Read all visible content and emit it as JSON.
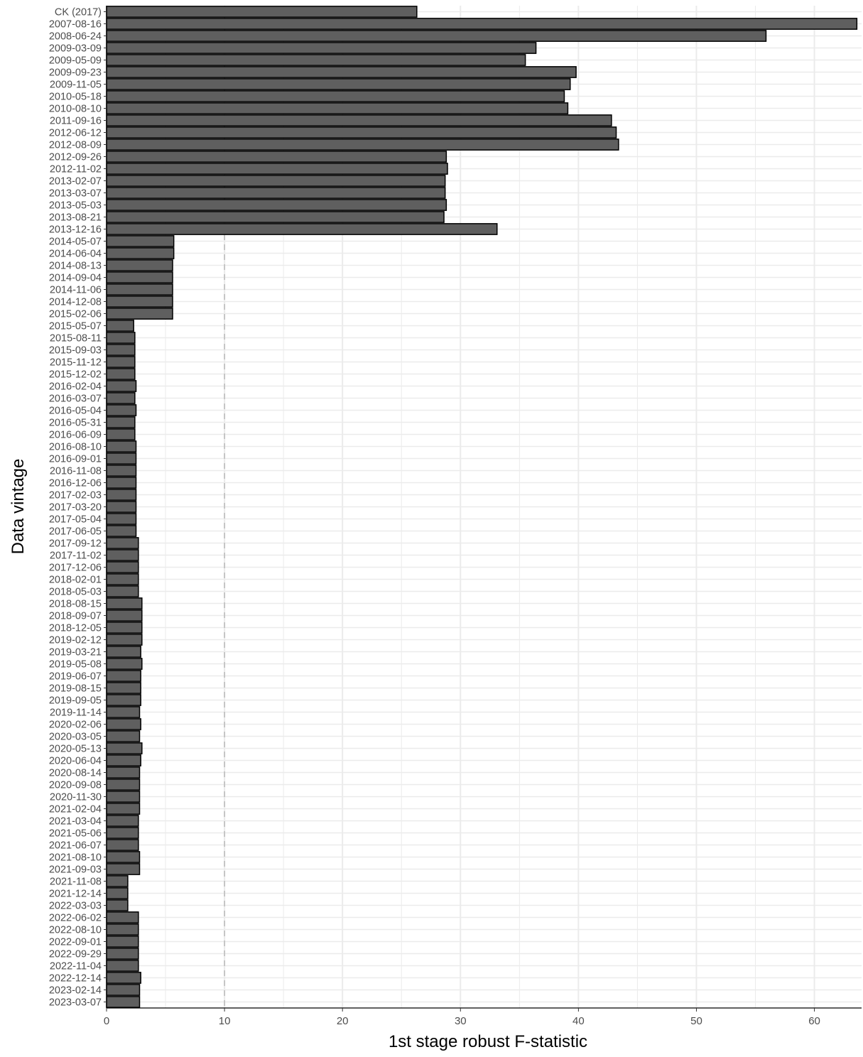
{
  "chart_data": {
    "type": "bar",
    "orientation": "horizontal",
    "xlabel": "1st stage robust F-statistic",
    "ylabel": "Data vintage",
    "xlim": [
      0,
      64
    ],
    "x_ticks": [
      0,
      10,
      20,
      30,
      40,
      50,
      60
    ],
    "reference_line": 10,
    "grid": true,
    "colors": {
      "bar_fill": "#5f5f5f",
      "bar_stroke": "#000000",
      "grid": "#ebebeb",
      "ref_line": "#bdbdbd"
    },
    "categories": [
      "CK (2017)",
      "2007-08-16",
      "2008-06-24",
      "2009-03-09",
      "2009-05-09",
      "2009-09-23",
      "2009-11-05",
      "2010-05-18",
      "2010-08-10",
      "2011-09-16",
      "2012-06-12",
      "2012-08-09",
      "2012-09-26",
      "2012-11-02",
      "2013-02-07",
      "2013-03-07",
      "2013-05-03",
      "2013-08-21",
      "2013-12-16",
      "2014-05-07",
      "2014-06-04",
      "2014-08-13",
      "2014-09-04",
      "2014-11-06",
      "2014-12-08",
      "2015-02-06",
      "2015-05-07",
      "2015-08-11",
      "2015-09-03",
      "2015-11-12",
      "2015-12-02",
      "2016-02-04",
      "2016-03-07",
      "2016-05-04",
      "2016-05-31",
      "2016-06-09",
      "2016-08-10",
      "2016-09-01",
      "2016-11-08",
      "2016-12-06",
      "2017-02-03",
      "2017-03-20",
      "2017-05-04",
      "2017-06-05",
      "2017-09-12",
      "2017-11-02",
      "2017-12-06",
      "2018-02-01",
      "2018-05-03",
      "2018-08-15",
      "2018-09-07",
      "2018-12-05",
      "2019-02-12",
      "2019-03-21",
      "2019-05-08",
      "2019-06-07",
      "2019-08-15",
      "2019-09-05",
      "2019-11-14",
      "2020-02-06",
      "2020-03-05",
      "2020-05-13",
      "2020-06-04",
      "2020-08-14",
      "2020-09-08",
      "2020-11-30",
      "2021-02-04",
      "2021-03-04",
      "2021-05-06",
      "2021-06-07",
      "2021-08-10",
      "2021-09-03",
      "2021-11-08",
      "2021-12-14",
      "2022-03-03",
      "2022-06-02",
      "2022-08-10",
      "2022-09-01",
      "2022-09-29",
      "2022-11-04",
      "2022-12-14",
      "2023-02-14",
      "2023-03-07"
    ],
    "values": [
      26.3,
      63.6,
      55.9,
      36.4,
      35.5,
      39.8,
      39.3,
      38.8,
      39.1,
      42.8,
      43.2,
      43.4,
      28.8,
      28.9,
      28.7,
      28.7,
      28.8,
      28.6,
      33.1,
      5.7,
      5.7,
      5.6,
      5.6,
      5.6,
      5.6,
      5.6,
      2.3,
      2.4,
      2.4,
      2.4,
      2.4,
      2.5,
      2.4,
      2.5,
      2.4,
      2.4,
      2.5,
      2.5,
      2.5,
      2.5,
      2.5,
      2.5,
      2.5,
      2.5,
      2.7,
      2.7,
      2.7,
      2.7,
      2.7,
      3.0,
      3.0,
      3.0,
      3.0,
      2.9,
      3.0,
      2.9,
      2.9,
      2.9,
      2.8,
      2.9,
      2.8,
      3.0,
      2.9,
      2.8,
      2.8,
      2.8,
      2.8,
      2.7,
      2.7,
      2.7,
      2.8,
      2.8,
      1.8,
      1.8,
      1.8,
      2.7,
      2.7,
      2.7,
      2.7,
      2.7,
      2.9,
      2.8,
      2.8
    ]
  }
}
